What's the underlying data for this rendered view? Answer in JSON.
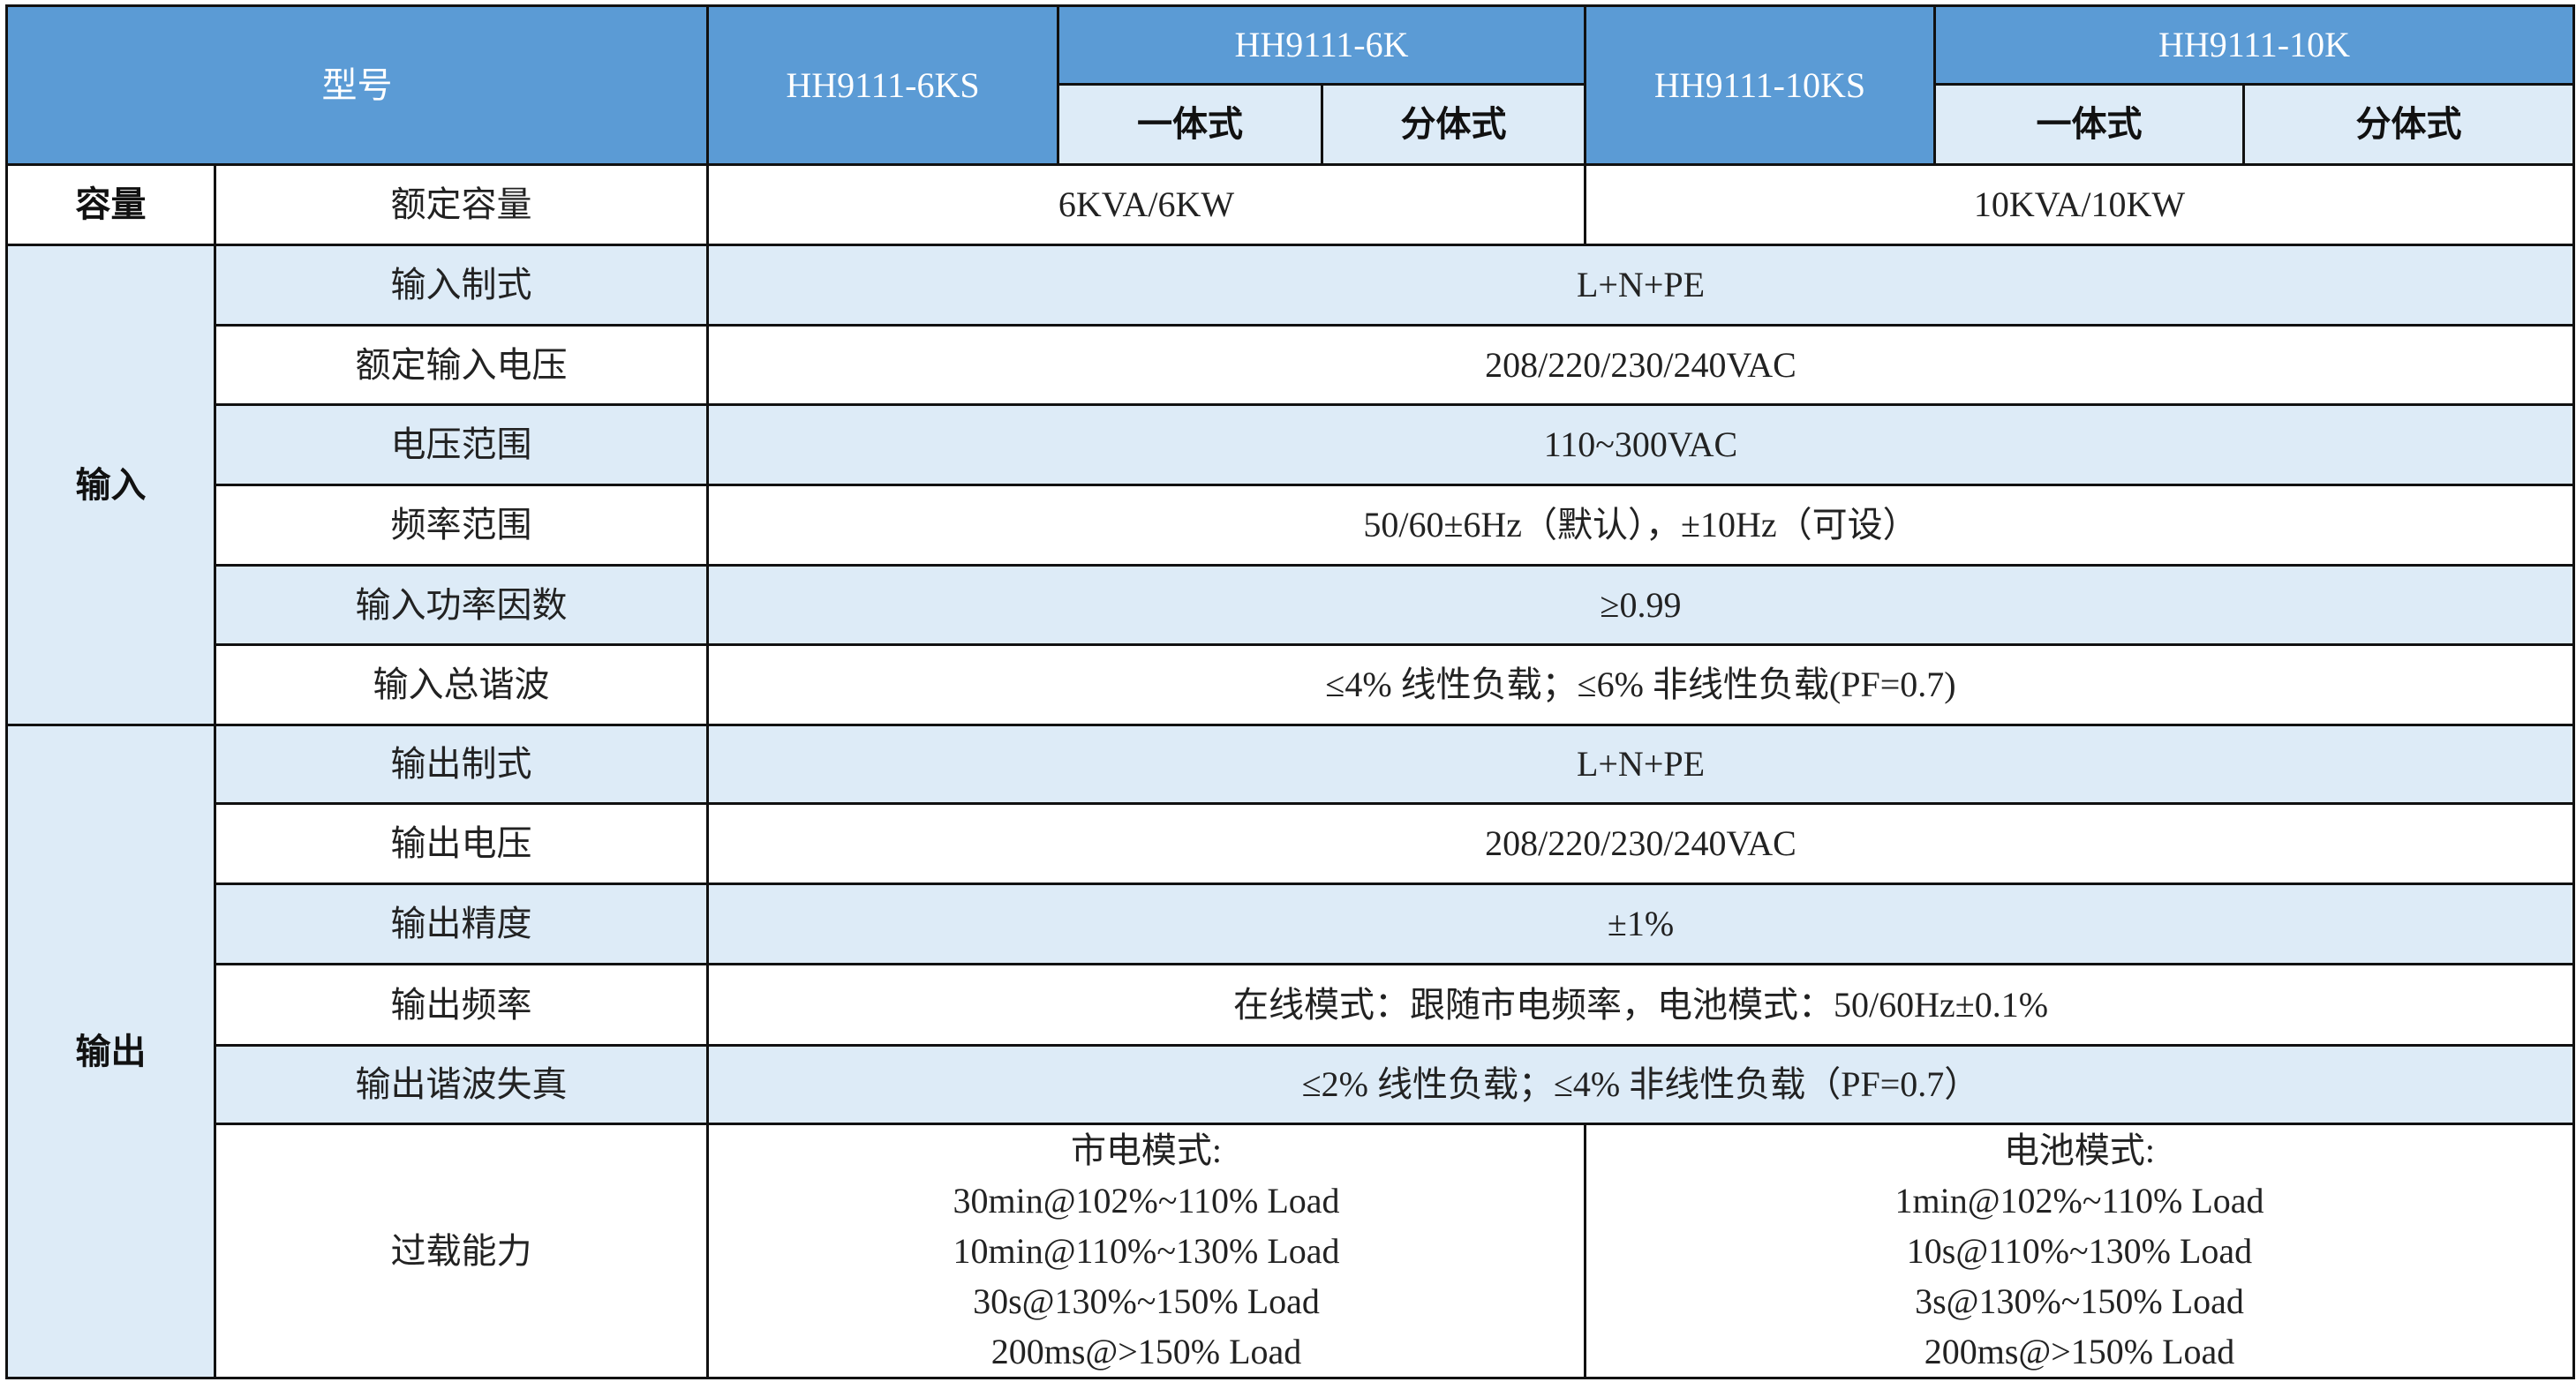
{
  "header": {
    "model_label": "型号",
    "models": [
      "HH9111-6KS",
      "HH9111-6K",
      "HH9111-10KS",
      "HH9111-10K"
    ],
    "sub_types": [
      "一体式",
      "分体式",
      "一体式",
      "分体式"
    ]
  },
  "capacity": {
    "group": "容量",
    "label": "额定容量",
    "values": [
      "6KVA/6KW",
      "10KVA/10KW"
    ]
  },
  "input": {
    "group": "输入",
    "rows": [
      {
        "label": "输入制式",
        "value": "L+N+PE"
      },
      {
        "label": "额定输入电压",
        "value": "208/220/230/240VAC"
      },
      {
        "label": "电压范围",
        "value": "110~300VAC"
      },
      {
        "label": "频率范围",
        "value": "50/60±6Hz（默认），±10Hz（可设）"
      },
      {
        "label": "输入功率因数",
        "value": "≥0.99"
      },
      {
        "label": "输入总谐波",
        "value": "≤4% 线性负载；≤6% 非线性负载(PF=0.7)"
      }
    ]
  },
  "output": {
    "group": "输出",
    "rows": [
      {
        "label": "输出制式",
        "value": "L+N+PE"
      },
      {
        "label": "输出电压",
        "value": "208/220/230/240VAC"
      },
      {
        "label": "输出精度",
        "value": "±1%"
      },
      {
        "label": "输出频率",
        "value": "在线模式：跟随市电频率，电池模式：50/60Hz±0.1%"
      },
      {
        "label": "输出谐波失真",
        "value": "≤2% 线性负载；≤4% 非线性负载（PF=0.7）"
      }
    ],
    "overload": {
      "label": "过载能力",
      "mains": {
        "title": "市电模式:",
        "lines": [
          "30min@102%~110% Load",
          "10min@110%~130% Load",
          "30s@130%~150% Load",
          "200ms@>150% Load"
        ]
      },
      "battery": {
        "title": "电池模式:",
        "lines": [
          "1min@102%~110% Load",
          "10s@110%~130% Load",
          "3s@130%~150% Load",
          "200ms@>150% Load"
        ]
      }
    }
  },
  "colors": {
    "header": "#5B9BD5",
    "stripe": "#DDEBF7"
  }
}
